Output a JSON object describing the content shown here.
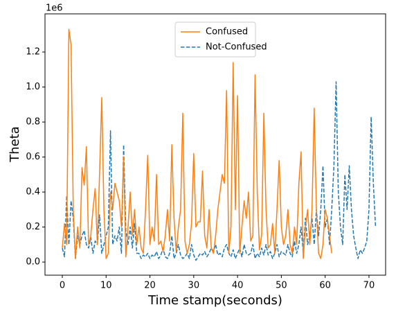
{
  "chart_data": {
    "type": "line",
    "ylabel": "Theta",
    "xlabel": "Time stamp(seconds)",
    "y_offset_label": "1e6",
    "xlim": [
      -3.95,
      73.8
    ],
    "ylim": [
      -0.075,
      1.418
    ],
    "xticks": [
      0,
      10,
      20,
      30,
      40,
      50,
      60,
      70
    ],
    "yticks": [
      {
        "value": 0,
        "label": "0.0"
      },
      0.2,
      0.4,
      0.6,
      0.8,
      {
        "value": 1,
        "label": "1.0"
      },
      1.2
    ],
    "legend": "upper center",
    "series": [
      {
        "name": "Confused",
        "color": "#ff7f0e",
        "dash": false,
        "x": [
          0,
          0.5,
          1,
          1.5,
          2,
          2.5,
          3,
          3.5,
          4,
          4.5,
          5,
          5.5,
          6,
          6.5,
          7,
          7.5,
          8,
          8.5,
          9,
          9.5,
          10,
          10.5,
          11,
          11.5,
          12,
          12.5,
          13,
          13.5,
          14,
          14.5,
          15,
          15.5,
          16,
          16.5,
          17,
          17.5,
          18,
          18.5,
          19,
          19.5,
          20,
          20.5,
          21,
          21.5,
          22,
          22.5,
          23,
          23.5,
          24,
          24.5,
          25,
          25.5,
          26,
          26.5,
          27,
          27.5,
          28,
          28.5,
          29,
          29.5,
          30,
          30.5,
          31,
          31.5,
          32,
          32.5,
          33,
          33.5,
          34,
          34.5,
          35,
          35.5,
          36,
          36.5,
          37,
          37.5,
          38,
          38.5,
          39,
          39.5,
          40,
          40.5,
          41,
          41.5,
          42,
          42.5,
          43,
          43.5,
          44,
          44.5,
          45,
          45.5,
          46,
          46.5,
          47,
          47.5,
          48,
          48.5,
          49,
          49.5,
          50,
          50.5,
          51,
          51.5,
          52,
          52.5,
          53,
          53.5,
          54,
          54.5,
          55,
          55.5,
          56,
          56.5,
          57,
          57.5,
          58,
          58.5,
          59,
          59.5,
          60,
          60.5,
          61,
          61.5
        ],
        "values": [
          0.08,
          0.22,
          0.1,
          1.33,
          1.24,
          0.3,
          0.02,
          0.2,
          0.08,
          0.54,
          0.44,
          0.66,
          0.1,
          0.15,
          0.3,
          0.42,
          0.1,
          0.5,
          0.94,
          0.3,
          0.02,
          0.05,
          0.4,
          0.3,
          0.45,
          0.4,
          0.35,
          0.2,
          0.6,
          0.03,
          0.2,
          0.4,
          0.15,
          0.3,
          0.1,
          0.2,
          0.08,
          0.05,
          0.3,
          0.61,
          0.1,
          0.2,
          0.12,
          0.5,
          0.1,
          0.12,
          0.06,
          0.15,
          0.3,
          0.12,
          0.67,
          0.25,
          0.06,
          0.2,
          0.3,
          0.85,
          0.12,
          0.05,
          0.1,
          0.22,
          0.62,
          0.2,
          0.23,
          0.23,
          0.52,
          0.15,
          0.08,
          0.3,
          0.08,
          0.05,
          0.15,
          0.3,
          0.4,
          0.5,
          0.45,
          0.98,
          0.05,
          0.2,
          1.14,
          0.3,
          0.95,
          0.05,
          0.2,
          0.35,
          0.25,
          0.4,
          0.12,
          0.15,
          1.07,
          0.4,
          0.07,
          0.15,
          0.85,
          0.3,
          0.08,
          0.1,
          0.22,
          0.05,
          0.3,
          0.58,
          0.2,
          0.1,
          0.15,
          0.3,
          0.1,
          0.05,
          0.2,
          0.1,
          0.45,
          0.63,
          0.02,
          0.2,
          0.3,
          0.1,
          0.3,
          0.88,
          0.3,
          0.05,
          0.02,
          0.1,
          0.3,
          0.25,
          0.15,
          0.05
        ]
      },
      {
        "name": "Not-Confused",
        "color": "#1f77b4",
        "dash": true,
        "x": [
          0,
          0.5,
          1,
          1.5,
          2,
          2.5,
          3,
          3.5,
          4,
          4.5,
          5,
          5.5,
          6,
          6.5,
          7,
          7.5,
          8,
          8.5,
          9,
          9.5,
          10,
          10.5,
          11,
          11.5,
          12,
          12.5,
          13,
          13.5,
          14,
          14.5,
          15,
          15.5,
          16,
          16.5,
          17,
          17.5,
          18,
          18.5,
          19,
          19.5,
          20,
          20.5,
          21,
          21.5,
          22,
          22.5,
          23,
          23.5,
          24,
          24.5,
          25,
          25.5,
          26,
          26.5,
          27,
          27.5,
          28,
          28.5,
          29,
          29.5,
          30,
          30.5,
          31,
          31.5,
          32,
          32.5,
          33,
          33.5,
          34,
          34.5,
          35,
          35.5,
          36,
          36.5,
          37,
          37.5,
          38,
          38.5,
          39,
          39.5,
          40,
          40.5,
          41,
          41.5,
          42,
          42.5,
          43,
          43.5,
          44,
          44.5,
          45,
          45.5,
          46,
          46.5,
          47,
          47.5,
          48,
          48.5,
          49,
          49.5,
          50,
          50.5,
          51,
          51.5,
          52,
          52.5,
          53,
          53.5,
          54,
          54.5,
          55,
          55.5,
          56,
          56.5,
          57,
          57.5,
          58,
          58.5,
          59,
          59.5,
          60,
          60.5,
          61,
          61.5,
          62,
          62.5,
          63,
          63.5,
          64,
          64.5,
          65,
          65.5,
          66,
          66.5,
          67,
          67.5,
          68,
          68.5,
          69,
          69.5,
          70,
          70.5,
          71,
          71.5
        ],
        "values": [
          0.08,
          0.03,
          0.38,
          0.1,
          0.35,
          0.25,
          0.02,
          0.15,
          0.1,
          0.15,
          0.18,
          0.1,
          0.08,
          0.14,
          0.05,
          0.12,
          0.1,
          0.27,
          0.05,
          0.1,
          0.15,
          0.2,
          0.75,
          0.1,
          0.15,
          0.12,
          0.2,
          0.05,
          0.67,
          0.18,
          0.1,
          0.2,
          0.08,
          0.22,
          0.05,
          0.05,
          0.02,
          0.04,
          0.03,
          0.05,
          0.02,
          0.04,
          0.03,
          0.06,
          0.02,
          0.04,
          0.08,
          0.03,
          0.02,
          0.05,
          0.15,
          0.02,
          0.05,
          0.1,
          0.04,
          0.02,
          0.03,
          0.05,
          0.02,
          0.1,
          0.04,
          0.01,
          0.03,
          0.05,
          0.04,
          0.06,
          0.03,
          0.05,
          0.08,
          0.06,
          0.1,
          0.04,
          0.05,
          0.03,
          0.08,
          0.1,
          0.05,
          0.03,
          0.07,
          0.02,
          0.05,
          0.08,
          0.03,
          0.1,
          0.05,
          0.04,
          0.05,
          0.1,
          0.02,
          0.05,
          0.03,
          0.08,
          0.04,
          0.1,
          0.04,
          0.06,
          0.02,
          0.05,
          0.1,
          0.03,
          0.06,
          0.05,
          0.04,
          0.1,
          0.05,
          0.03,
          0.12,
          0.05,
          0.1,
          0.2,
          0.05,
          0.25,
          0.1,
          0.15,
          0.25,
          0.1,
          0.3,
          0.15,
          0.3,
          0.55,
          0.2,
          0.25,
          0.1,
          0.3,
          0.55,
          1.03,
          0.4,
          0.2,
          0.1,
          0.5,
          0.3,
          0.55,
          0.3,
          0.15,
          0.08,
          0.02,
          0.07,
          0.05,
          0.08,
          0.12,
          0.3,
          0.83,
          0.45,
          0.2
        ]
      }
    ]
  }
}
